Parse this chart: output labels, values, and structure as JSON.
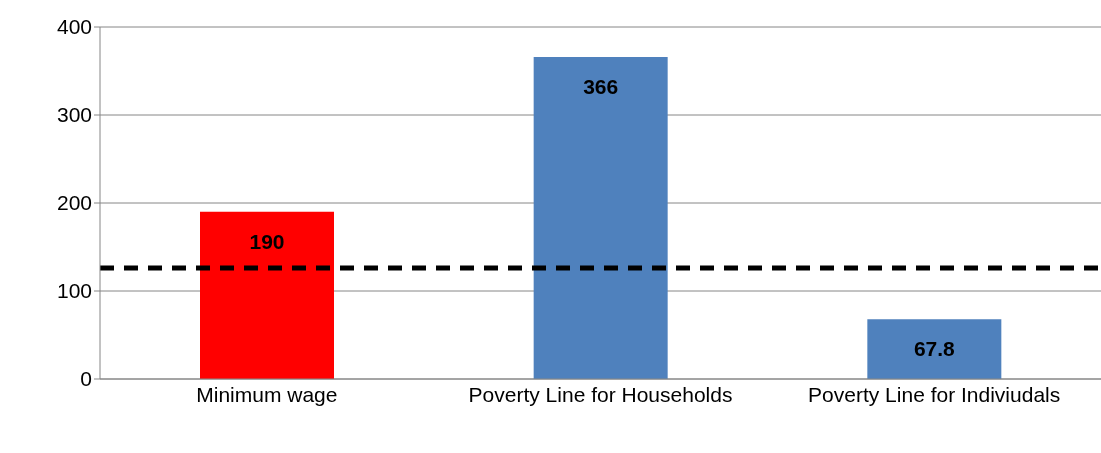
{
  "chart_data": {
    "type": "bar",
    "categories": [
      "Minimum wage",
      "Poverty Line for Households",
      "Poverty Line for Indiviudals"
    ],
    "values": [
      190,
      366,
      67.8
    ],
    "colors": [
      "#ff0000",
      "#4f81bd",
      "#4f81bd"
    ],
    "ylim": [
      0,
      400
    ],
    "yticks": [
      0,
      100,
      200,
      300,
      400
    ],
    "grid": "y",
    "data_labels": true,
    "ref_lines": [
      {
        "axis": "y",
        "value": 126,
        "color": "#000000",
        "line_style": "dashed"
      }
    ]
  }
}
